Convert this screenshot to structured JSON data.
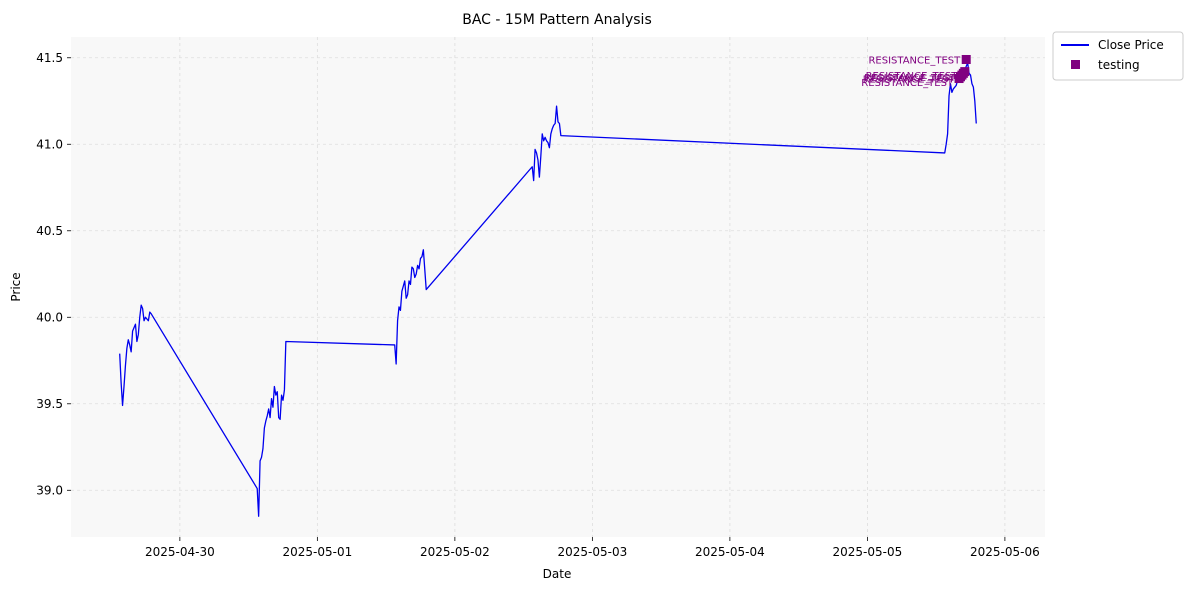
{
  "chart_data": {
    "type": "line",
    "title": "BAC - 15M Pattern Analysis",
    "xlabel": "Date",
    "ylabel": "Price",
    "xlim": [
      "2025-04-29T05:00",
      "2025-05-06T07:00"
    ],
    "ylim": [
      38.73,
      41.62
    ],
    "x_ticks": [
      "2025-04-30",
      "2025-05-01",
      "2025-05-02",
      "2025-05-03",
      "2025-05-04",
      "2025-05-05",
      "2025-05-06"
    ],
    "y_ticks": [
      39.0,
      39.5,
      40.0,
      40.5,
      41.0,
      41.5
    ],
    "y_tick_labels": [
      "39.0",
      "39.5",
      "40.0",
      "40.5",
      "41.0",
      "41.5"
    ],
    "grid": true,
    "legend_position": "outside-top-right",
    "series": [
      {
        "name": "Close Price",
        "color": "#0000ee",
        "points": [
          [
            "2025-04-29T13:30",
            39.79
          ],
          [
            "2025-04-29T13:45",
            39.62
          ],
          [
            "2025-04-29T14:00",
            39.49
          ],
          [
            "2025-04-29T14:15",
            39.6
          ],
          [
            "2025-04-29T14:30",
            39.72
          ],
          [
            "2025-04-29T14:45",
            39.82
          ],
          [
            "2025-04-29T15:00",
            39.87
          ],
          [
            "2025-04-29T15:15",
            39.84
          ],
          [
            "2025-04-29T15:30",
            39.8
          ],
          [
            "2025-04-29T15:45",
            39.92
          ],
          [
            "2025-04-29T16:00",
            39.94
          ],
          [
            "2025-04-29T16:15",
            39.96
          ],
          [
            "2025-04-29T16:30",
            39.86
          ],
          [
            "2025-04-29T16:45",
            39.9
          ],
          [
            "2025-04-29T17:00",
            40.0
          ],
          [
            "2025-04-29T17:15",
            40.07
          ],
          [
            "2025-04-29T17:30",
            40.05
          ],
          [
            "2025-04-29T17:45",
            39.98
          ],
          [
            "2025-04-29T18:00",
            40.0
          ],
          [
            "2025-04-29T18:15",
            39.99
          ],
          [
            "2025-04-29T18:30",
            39.98
          ],
          [
            "2025-04-29T18:45",
            40.03
          ],
          [
            "2025-04-29T19:00",
            40.02
          ],
          [
            "2025-04-30T13:30",
            39.01
          ],
          [
            "2025-04-30T13:45",
            38.85
          ],
          [
            "2025-04-30T14:00",
            39.17
          ],
          [
            "2025-04-30T14:15",
            39.19
          ],
          [
            "2025-04-30T14:30",
            39.24
          ],
          [
            "2025-04-30T14:45",
            39.36
          ],
          [
            "2025-04-30T15:00",
            39.4
          ],
          [
            "2025-04-30T15:15",
            39.43
          ],
          [
            "2025-04-30T15:30",
            39.47
          ],
          [
            "2025-04-30T15:45",
            39.42
          ],
          [
            "2025-04-30T16:00",
            39.53
          ],
          [
            "2025-04-30T16:15",
            39.48
          ],
          [
            "2025-04-30T16:30",
            39.6
          ],
          [
            "2025-04-30T16:45",
            39.55
          ],
          [
            "2025-04-30T17:00",
            39.57
          ],
          [
            "2025-04-30T17:15",
            39.42
          ],
          [
            "2025-04-30T17:30",
            39.41
          ],
          [
            "2025-04-30T17:45",
            39.55
          ],
          [
            "2025-04-30T18:00",
            39.52
          ],
          [
            "2025-04-30T18:15",
            39.58
          ],
          [
            "2025-04-30T18:30",
            39.86
          ],
          [
            "2025-05-01T13:30",
            39.84
          ],
          [
            "2025-05-01T13:45",
            39.73
          ],
          [
            "2025-05-01T14:00",
            39.98
          ],
          [
            "2025-05-01T14:15",
            40.06
          ],
          [
            "2025-05-01T14:30",
            40.04
          ],
          [
            "2025-05-01T14:45",
            40.15
          ],
          [
            "2025-05-01T15:00",
            40.18
          ],
          [
            "2025-05-01T15:15",
            40.21
          ],
          [
            "2025-05-01T15:30",
            40.11
          ],
          [
            "2025-05-01T15:45",
            40.13
          ],
          [
            "2025-05-01T16:00",
            40.21
          ],
          [
            "2025-05-01T16:15",
            40.19
          ],
          [
            "2025-05-01T16:30",
            40.29
          ],
          [
            "2025-05-01T16:45",
            40.28
          ],
          [
            "2025-05-01T17:00",
            40.23
          ],
          [
            "2025-05-01T17:15",
            40.25
          ],
          [
            "2025-05-01T17:30",
            40.3
          ],
          [
            "2025-05-01T17:45",
            40.28
          ],
          [
            "2025-05-01T18:00",
            40.34
          ],
          [
            "2025-05-01T18:15",
            40.35
          ],
          [
            "2025-05-01T18:30",
            40.39
          ],
          [
            "2025-05-01T19:00",
            40.16
          ],
          [
            "2025-05-02T13:30",
            40.87
          ],
          [
            "2025-05-02T13:45",
            40.79
          ],
          [
            "2025-05-02T14:00",
            40.97
          ],
          [
            "2025-05-02T14:15",
            40.95
          ],
          [
            "2025-05-02T14:30",
            40.91
          ],
          [
            "2025-05-02T14:45",
            40.81
          ],
          [
            "2025-05-02T15:00",
            40.93
          ],
          [
            "2025-05-02T15:15",
            41.06
          ],
          [
            "2025-05-02T15:30",
            41.02
          ],
          [
            "2025-05-02T15:45",
            41.04
          ],
          [
            "2025-05-02T16:00",
            41.02
          ],
          [
            "2025-05-02T16:15",
            41.01
          ],
          [
            "2025-05-02T16:30",
            40.98
          ],
          [
            "2025-05-02T16:45",
            41.06
          ],
          [
            "2025-05-02T17:00",
            41.09
          ],
          [
            "2025-05-02T17:15",
            41.11
          ],
          [
            "2025-05-02T17:30",
            41.12
          ],
          [
            "2025-05-02T17:45",
            41.22
          ],
          [
            "2025-05-02T18:00",
            41.13
          ],
          [
            "2025-05-02T18:15",
            41.12
          ],
          [
            "2025-05-02T18:30",
            41.05
          ],
          [
            "2025-05-05T13:30",
            40.95
          ],
          [
            "2025-05-05T13:45",
            41.0
          ],
          [
            "2025-05-05T14:00",
            41.06
          ],
          [
            "2025-05-05T14:15",
            41.28
          ],
          [
            "2025-05-05T14:30",
            41.35
          ],
          [
            "2025-05-05T14:45",
            41.3
          ],
          [
            "2025-05-05T15:00",
            41.32
          ],
          [
            "2025-05-05T15:15",
            41.33
          ],
          [
            "2025-05-05T15:30",
            41.34
          ],
          [
            "2025-05-05T15:45",
            41.37
          ],
          [
            "2025-05-05T16:00",
            41.4
          ],
          [
            "2025-05-05T16:15",
            41.38
          ],
          [
            "2025-05-05T16:30",
            41.41
          ],
          [
            "2025-05-05T16:45",
            41.39
          ],
          [
            "2025-05-05T17:00",
            41.43
          ],
          [
            "2025-05-05T17:15",
            41.45
          ],
          [
            "2025-05-05T17:30",
            41.47
          ],
          [
            "2025-05-05T17:45",
            41.41
          ],
          [
            "2025-05-05T18:00",
            41.4
          ],
          [
            "2025-05-05T18:15",
            41.35
          ],
          [
            "2025-05-05T18:30",
            41.33
          ],
          [
            "2025-05-05T18:45",
            41.25
          ],
          [
            "2025-05-05T19:00",
            41.12
          ]
        ]
      }
    ],
    "markers": {
      "name": "testing",
      "color": "#800080",
      "shape": "square",
      "points": [
        [
          "2025-05-05T16:00",
          41.38
        ],
        [
          "2025-05-05T16:15",
          41.39
        ],
        [
          "2025-05-05T16:30",
          41.4
        ],
        [
          "2025-05-05T16:45",
          41.41
        ],
        [
          "2025-05-05T17:00",
          41.42
        ],
        [
          "2025-05-05T17:15",
          41.49
        ]
      ]
    },
    "annotations": [
      {
        "text": "RESISTANCE_TEST",
        "x": "2025-05-05T17:15",
        "y": 41.49
      },
      {
        "text": "RESISTANCE_TEST",
        "x": "2025-05-05T16:45",
        "y": 41.4
      },
      {
        "text": "RESISTANCE_TEST",
        "x": "2025-05-05T16:30",
        "y": 41.39
      },
      {
        "text": "RESISTANCE_TEST",
        "x": "2025-05-05T16:15",
        "y": 41.38
      },
      {
        "text": "RESISTANCE_TEST",
        "x": "2025-05-05T16:00",
        "y": 41.36
      }
    ],
    "colors": {
      "plot_background": "#f8f8f8",
      "grid": "#dddddd",
      "annotation": "#800080"
    }
  }
}
